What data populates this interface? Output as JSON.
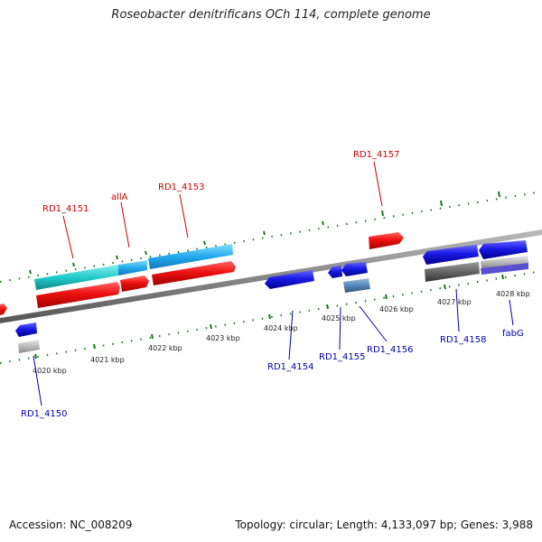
{
  "title": "Roseobacter denitrificans OCh 114, complete genome",
  "footer": {
    "accession": "Accession: NC_008209",
    "summary": "Topology: circular; Length: 4,133,097 bp; Genes: 3,988"
  },
  "ticks": [
    "4020 kbp",
    "4021 kbp",
    "4022 kbp",
    "4023 kbp",
    "4024 kbp",
    "4025 kbp",
    "4026 kbp",
    "4027 kbp",
    "4028 kbp"
  ],
  "labels": {
    "rd1_4151": "RD1_4151",
    "alla": "allA",
    "rd1_4153": "RD1_4153",
    "rd1_4157": "RD1_4157",
    "rd1_4150": "RD1_4150",
    "rd1_4154": "RD1_4154",
    "rd1_4155": "RD1_4155",
    "rd1_4156": "RD1_4156",
    "rd1_4158": "RD1_4158",
    "fabg": "fabG"
  },
  "colors": {
    "forward_gene": "#ee1111",
    "reverse_gene": "#1a1ae6",
    "cyan_feature": "#22cccc",
    "skyblue_feature": "#22aaee",
    "backbone": "#888888",
    "tick_green": "#1a7a1a"
  }
}
